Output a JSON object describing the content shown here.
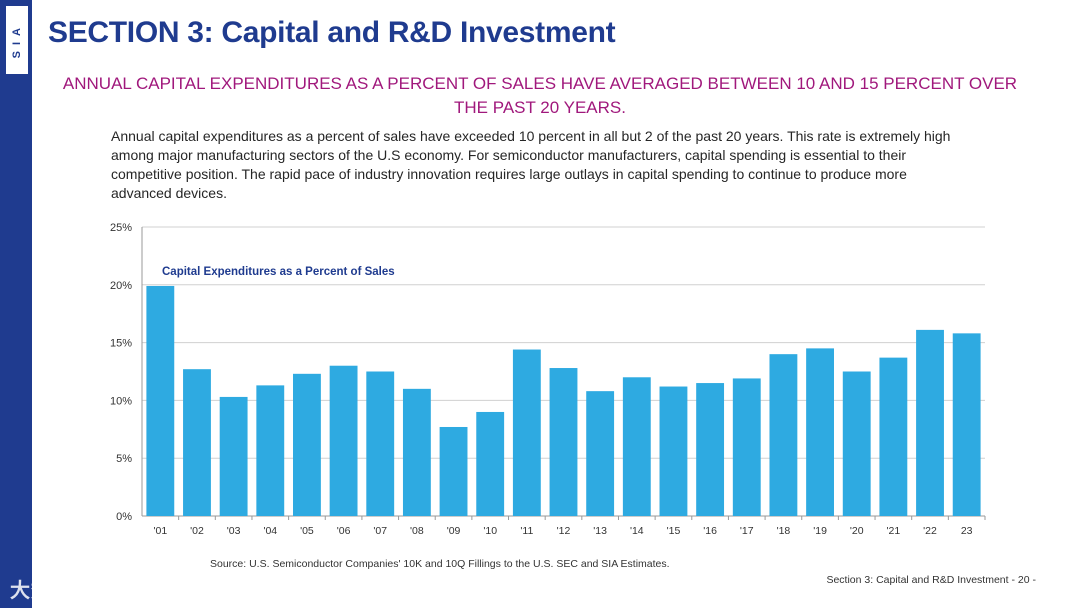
{
  "header": {
    "logo_text": "SIA",
    "title": "SECTION 3: Capital and R&D Investment",
    "subtitle": "ANNUAL CAPITAL EXPENDITURES AS A PERCENT OF SALES HAVE AVERAGED BETWEEN 10 AND 15 PERCENT OVER THE PAST 20 YEARS."
  },
  "body_text": "Annual capital expenditures as a percent of sales have exceeded 10 percent in all but 2 of the past 20 years. This rate is extremely high among major manufacturing sectors of the U.S economy. For semiconductor manufacturers, capital spending is essential to their competitive position. The rapid pace of industry innovation requires large outlays in capital spending to continue to produce more advanced devices.",
  "chart_data": {
    "type": "bar",
    "title": "Capital Expenditures as a Percent of Sales",
    "categories": [
      "'01",
      "'02",
      "'03",
      "'04",
      "'05",
      "'06",
      "'07",
      "'08",
      "'09",
      "'10",
      "'11",
      "'12",
      "'13",
      "'14",
      "'15",
      "'16",
      "'17",
      "'18",
      "'19",
      "'20",
      "'21",
      "'22",
      "23"
    ],
    "values": [
      19.9,
      12.7,
      10.3,
      11.3,
      12.3,
      13.0,
      12.5,
      11.0,
      7.7,
      9.0,
      14.4,
      12.8,
      10.8,
      12.0,
      11.2,
      11.5,
      11.9,
      14.0,
      14.5,
      12.5,
      13.7,
      16.1,
      15.8
    ],
    "ylim": [
      0,
      25
    ],
    "yticks": [
      0,
      5,
      10,
      15,
      20,
      25
    ],
    "ytick_labels": [
      "0%",
      "5%",
      "10%",
      "15%",
      "20%",
      "25%"
    ],
    "grid": true,
    "bar_color": "#2eaae1",
    "xlabel": "",
    "ylabel": ""
  },
  "source": "Source: U.S. Semiconductor Companies' 10K and 10Q Fillings to the U.S. SEC and SIA Estimates.",
  "footer": "Section 3: Capital and R&D Investment  - 20 -",
  "watermark": "大数跨境",
  "colors": {
    "sidebar": "#1f3b8f",
    "title": "#1f3b8f",
    "subtitle": "#a0187c"
  }
}
